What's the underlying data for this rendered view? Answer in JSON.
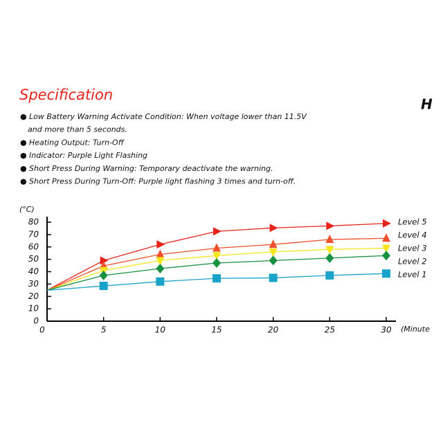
{
  "specification": {
    "title": "Specification",
    "items": [
      [
        "Low Battery Warning Activate Condition: When voltage lower than 11.5V",
        "and more than 5 seconds."
      ],
      [
        "Heating Output: Turn-Off"
      ],
      [
        "Indicator: Purple Light Flashing"
      ],
      [
        "Short Press During Warning: Temporary deactivate the warning."
      ],
      [
        "Short Press During Turn-Off: Purple light flashing 3 times and turn-off."
      ]
    ],
    "bullet": "●",
    "side_fragment": "H"
  },
  "chart_data": {
    "type": "line",
    "y_label": "(°C)",
    "x_label": "(Minute",
    "x": [
      0,
      5,
      10,
      15,
      20,
      25,
      30
    ],
    "xlim": [
      0,
      30
    ],
    "xticks": [
      0,
      5,
      10,
      15,
      20,
      25,
      30
    ],
    "ylim": [
      0,
      80
    ],
    "yticks": [
      0,
      10,
      20,
      30,
      40,
      50,
      60,
      70,
      80
    ],
    "series": [
      {
        "name": "Level 5",
        "color": "#e8231c",
        "marker": "triangle-right",
        "values": [
          25,
          49,
          62,
          72.6,
          75.4,
          77,
          79
        ]
      },
      {
        "name": "Level 4",
        "color": "#f0502a",
        "marker": "triangle-up",
        "values": [
          25,
          44.7,
          54,
          59,
          62,
          66,
          67
        ]
      },
      {
        "name": "Level 3",
        "color": "#f5e51a",
        "marker": "triangle-down",
        "values": [
          25,
          41,
          49,
          53,
          56,
          58,
          59
        ]
      },
      {
        "name": "Level 2",
        "color": "#169240",
        "marker": "diamond",
        "values": [
          25,
          37,
          42.5,
          47,
          49,
          51,
          53
        ]
      },
      {
        "name": "Level 1",
        "color": "#1aa3c8",
        "marker": "square",
        "values": [
          25,
          28.5,
          32,
          34.6,
          35,
          37,
          38.5
        ]
      }
    ]
  }
}
